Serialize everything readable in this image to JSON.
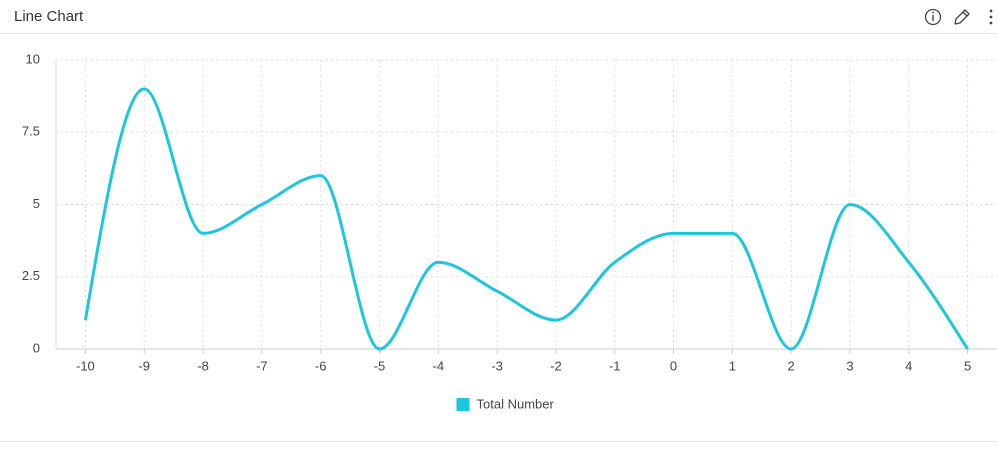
{
  "chart_data": {
    "type": "line",
    "title": "Line Chart",
    "x": [
      -10,
      -9,
      -8,
      -7,
      -6,
      -5,
      -4,
      -3,
      -2,
      -1,
      0,
      1,
      2,
      3,
      4,
      5
    ],
    "series": [
      {
        "name": "Total Number",
        "color": "#1cc7de",
        "values": [
          1,
          9,
          4,
          5,
          6,
          0,
          3,
          2,
          1,
          3,
          4,
          4,
          0,
          5,
          3,
          0
        ]
      }
    ],
    "xlim": [
      -10.5,
      5.5
    ],
    "xticks": [
      -10,
      -9,
      -8,
      -7,
      -6,
      -5,
      -4,
      -3,
      -2,
      -1,
      0,
      1,
      2,
      3,
      4,
      5
    ],
    "ylim": [
      0,
      10
    ],
    "yticks": [
      0,
      2.5,
      5,
      7.5,
      10
    ],
    "grid": true,
    "legend": "bottom",
    "smooth": true
  }
}
